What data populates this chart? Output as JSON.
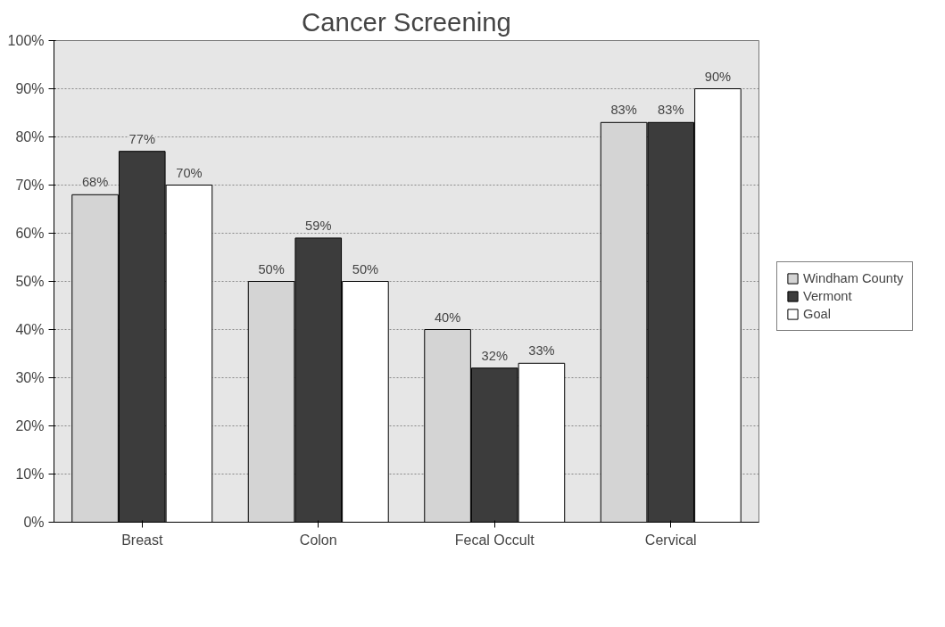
{
  "chart_data": {
    "type": "bar",
    "title": "Cancer Screening",
    "categories": [
      "Breast",
      "Colon",
      "Fecal Occult",
      "Cervical"
    ],
    "series": [
      {
        "name": "Windham County",
        "color": "#d4d4d4",
        "values": [
          68,
          50,
          40,
          83
        ],
        "value_labels": [
          "68%",
          "50%",
          "40%",
          "83%"
        ]
      },
      {
        "name": "Vermont",
        "color": "#3c3c3c",
        "values": [
          77,
          59,
          32,
          83
        ],
        "value_labels": [
          "77%",
          "59%",
          "32%",
          "83%"
        ]
      },
      {
        "name": "Goal",
        "color": "#ffffff",
        "values": [
          70,
          50,
          33,
          90
        ],
        "value_labels": [
          "70%",
          "50%",
          "33%",
          "90%"
        ]
      }
    ],
    "ylim": [
      0,
      100
    ],
    "yticks": [
      {
        "value": 0,
        "label": "0%"
      },
      {
        "value": 10,
        "label": "10%"
      },
      {
        "value": 20,
        "label": "20%"
      },
      {
        "value": 30,
        "label": "30%"
      },
      {
        "value": 40,
        "label": "40%"
      },
      {
        "value": 50,
        "label": "50%"
      },
      {
        "value": 60,
        "label": "60%"
      },
      {
        "value": 70,
        "label": "70%"
      },
      {
        "value": 80,
        "label": "80%"
      },
      {
        "value": 90,
        "label": "90%"
      },
      {
        "value": 100,
        "label": "100%"
      }
    ],
    "grid": "y",
    "legend": "right"
  }
}
